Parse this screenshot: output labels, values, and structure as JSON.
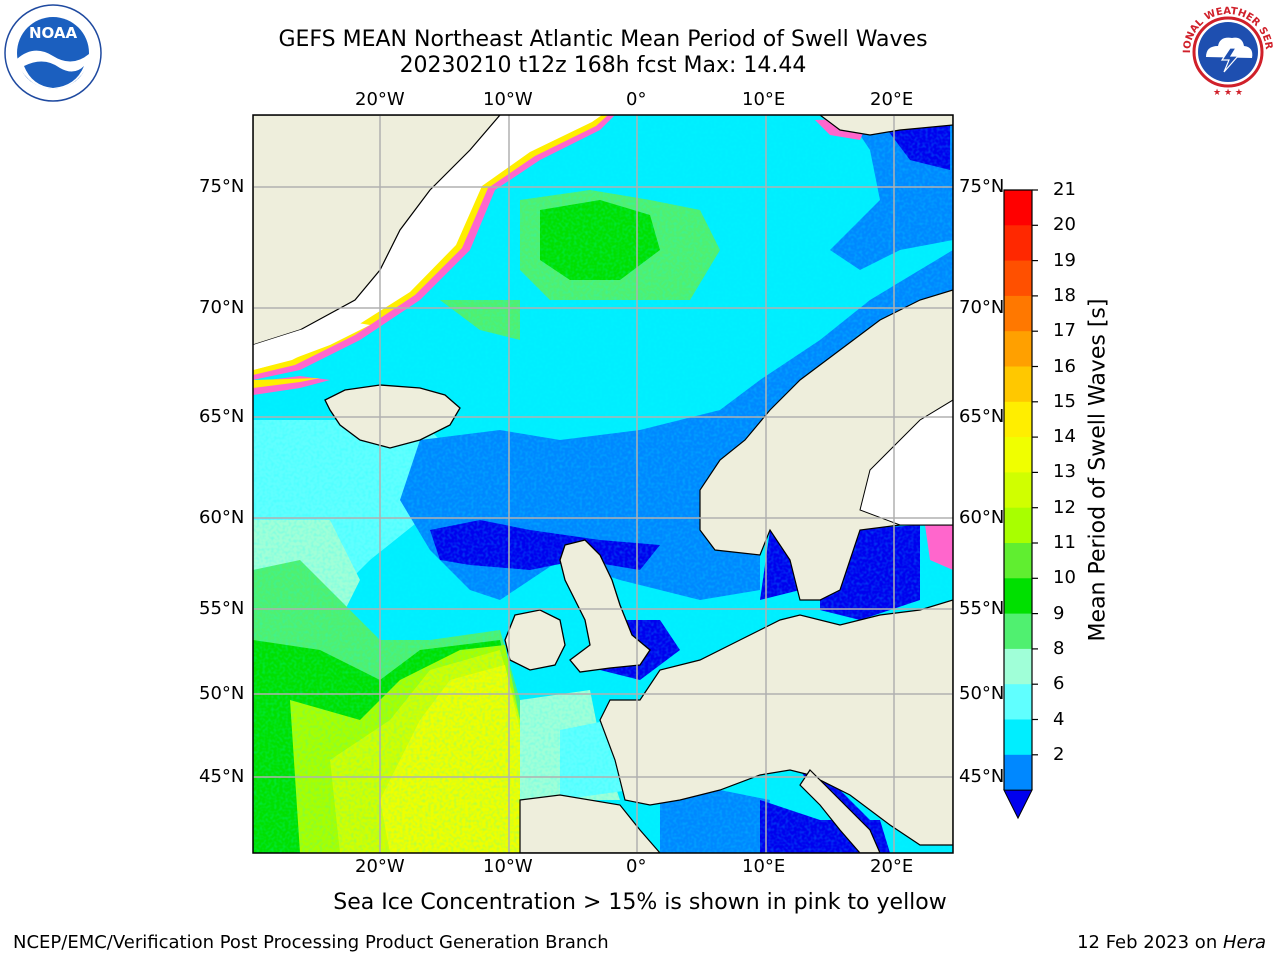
{
  "header": {
    "title_line1": "GEFS MEAN Northeast Atlantic Mean Period of Swell Waves",
    "title_line2": "20230210 t12z 168h fcst   Max: 14.44"
  },
  "logos": {
    "left": {
      "name": "noaa-logo",
      "text": "NOAA"
    },
    "right": {
      "name": "nws-logo",
      "text": "NATIONAL WEATHER SERVICE"
    }
  },
  "map": {
    "top_lon_labels": [
      "20°W",
      "10°W",
      "0°",
      "10°E",
      "20°E"
    ],
    "bottom_lon_labels": [
      "20°W",
      "10°W",
      "0°",
      "10°E",
      "20°E"
    ],
    "left_lat_labels": [
      "75°N",
      "70°N",
      "65°N",
      "60°N",
      "55°N",
      "50°N",
      "45°N"
    ],
    "right_lat_labels": [
      "75°N",
      "70°N",
      "65°N",
      "60°N",
      "55°N",
      "50°N",
      "45°N"
    ],
    "land_color": "#eeeedc",
    "grid_color": "#b0b0b0"
  },
  "colorbar": {
    "title": "Mean Period of Swell Waves [s]",
    "tick_labels": [
      "21",
      "20",
      "19",
      "18",
      "17",
      "16",
      "15",
      "14",
      "13",
      "12",
      "11",
      "10",
      "9",
      "8",
      "6",
      "4",
      "2"
    ],
    "colors_top_to_bottom": [
      "#ff0000",
      "#ff2800",
      "#ff5000",
      "#ff7800",
      "#ffa000",
      "#ffc800",
      "#ffee00",
      "#f0ff00",
      "#d0ff00",
      "#a8ff00",
      "#60ee30",
      "#00e000",
      "#50f070",
      "#a0ffd8",
      "#60ffff",
      "#00eeff",
      "#0088ff"
    ],
    "extend_color": "#0000ee"
  },
  "footnote": "Sea Ice Concentration > 15% is shown in pink to yellow",
  "footer": {
    "left": "NCEP/EMC/Verification Post Processing Product Generation Branch",
    "right_prefix": "12 Feb 2023 on ",
    "right_machine": "Hera"
  }
}
